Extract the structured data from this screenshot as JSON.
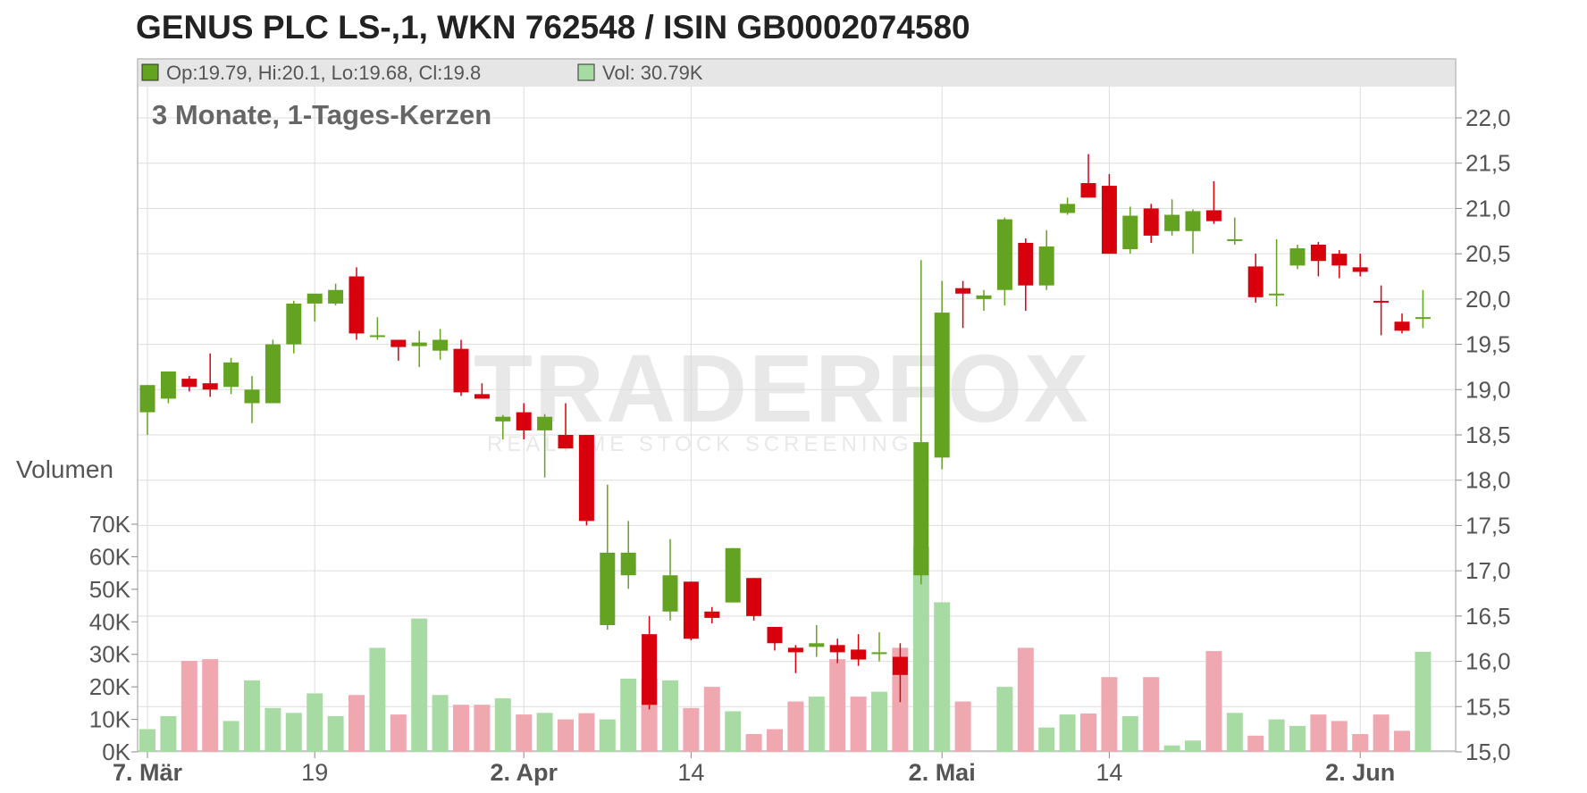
{
  "title": "GENUS PLC LS-,1, WKN 762548 / ISIN GB0002074580",
  "legend": {
    "ohlc_label": "Op:19.79, Hi:20.1, Lo:19.68, Cl:19.8",
    "volume_label": "Vol: 30.79K"
  },
  "watermark": {
    "brand": "TRADERFOX",
    "tagline": "REALTIME STOCK SCREENING"
  },
  "chart_data": {
    "type": "candlestick",
    "subtitle": "3 Monate, 1-Tages-Kerzen",
    "volume_axis_title": "Volumen",
    "colors": {
      "up": "#63a321",
      "down": "#d9000d",
      "vol_up": "#a8dba3",
      "vol_down": "#f0a8b0",
      "grid": "#dddddd",
      "legend_bg": "#e6e6e6"
    },
    "price_axis": {
      "min": 15.0,
      "max": 22.0,
      "step": 0.5,
      "tick_labels": [
        "15,0",
        "15,5",
        "16,0",
        "16,5",
        "17,0",
        "17,5",
        "18,0",
        "18,5",
        "19,0",
        "19,5",
        "20,0",
        "20,5",
        "21,0",
        "21,5",
        "22,0"
      ]
    },
    "volume_axis": {
      "min": 0,
      "max": 70000,
      "step": 10000,
      "tick_labels": [
        "0K",
        "10K",
        "20K",
        "30K",
        "40K",
        "50K",
        "60K",
        "70K"
      ]
    },
    "x_tick_labels": [
      {
        "label": "7. Mär",
        "index": 0,
        "bold": true
      },
      {
        "label": "19",
        "index": 8,
        "bold": false
      },
      {
        "label": "2. Apr",
        "index": 18,
        "bold": true
      },
      {
        "label": "14",
        "index": 26,
        "bold": false
      },
      {
        "label": "2. Mai",
        "index": 38,
        "bold": true
      },
      {
        "label": "14",
        "index": 46,
        "bold": false
      },
      {
        "label": "2. Jun",
        "index": 58,
        "bold": true
      }
    ],
    "candles": [
      {
        "o": 18.75,
        "h": 19.05,
        "l": 18.5,
        "c": 19.05,
        "v": 7000
      },
      {
        "o": 18.9,
        "h": 19.2,
        "l": 18.85,
        "c": 19.2,
        "v": 11000
      },
      {
        "o": 19.12,
        "h": 19.15,
        "l": 18.98,
        "c": 19.03,
        "v": 28000
      },
      {
        "o": 19.07,
        "h": 19.4,
        "l": 18.92,
        "c": 19.0,
        "v": 28500
      },
      {
        "o": 19.03,
        "h": 19.35,
        "l": 18.95,
        "c": 19.3,
        "v": 9500
      },
      {
        "o": 18.85,
        "h": 19.15,
        "l": 18.63,
        "c": 19.0,
        "v": 22000
      },
      {
        "o": 18.85,
        "h": 19.55,
        "l": 18.85,
        "c": 19.5,
        "v": 13500
      },
      {
        "o": 19.5,
        "h": 19.98,
        "l": 19.4,
        "c": 19.95,
        "v": 12000
      },
      {
        "o": 19.95,
        "h": 20.05,
        "l": 19.75,
        "c": 20.06,
        "v": 18000
      },
      {
        "o": 19.95,
        "h": 20.17,
        "l": 19.93,
        "c": 20.1,
        "v": 11000
      },
      {
        "o": 20.25,
        "h": 20.35,
        "l": 19.55,
        "c": 19.62,
        "v": 17500
      },
      {
        "o": 19.6,
        "h": 19.8,
        "l": 19.55,
        "c": 19.6,
        "v": 32000
      },
      {
        "o": 19.55,
        "h": 19.55,
        "l": 19.32,
        "c": 19.47,
        "v": 11500
      },
      {
        "o": 19.48,
        "h": 19.65,
        "l": 19.25,
        "c": 19.52,
        "v": 41000
      },
      {
        "o": 19.43,
        "h": 19.67,
        "l": 19.33,
        "c": 19.55,
        "v": 17500
      },
      {
        "o": 19.45,
        "h": 19.55,
        "l": 18.93,
        "c": 18.97,
        "v": 14500
      },
      {
        "o": 18.95,
        "h": 19.07,
        "l": 18.9,
        "c": 18.9,
        "v": 14500
      },
      {
        "o": 18.65,
        "h": 18.72,
        "l": 18.45,
        "c": 18.7,
        "v": 16500
      },
      {
        "o": 18.75,
        "h": 18.85,
        "l": 18.45,
        "c": 18.55,
        "v": 11500
      },
      {
        "o": 18.55,
        "h": 18.73,
        "l": 18.03,
        "c": 18.7,
        "v": 12000
      },
      {
        "o": 18.5,
        "h": 18.85,
        "l": 18.35,
        "c": 18.35,
        "v": 10000
      },
      {
        "o": 18.5,
        "h": 18.5,
        "l": 17.5,
        "c": 17.55,
        "v": 11900
      },
      {
        "o": 16.4,
        "h": 17.95,
        "l": 16.35,
        "c": 17.2,
        "v": 10000
      },
      {
        "o": 16.95,
        "h": 17.55,
        "l": 16.8,
        "c": 17.2,
        "v": 22500
      },
      {
        "o": 16.3,
        "h": 16.5,
        "l": 15.47,
        "c": 15.52,
        "v": 22500
      },
      {
        "o": 16.55,
        "h": 17.35,
        "l": 16.45,
        "c": 16.95,
        "v": 22000
      },
      {
        "o": 16.88,
        "h": 16.88,
        "l": 16.23,
        "c": 16.25,
        "v": 13500
      },
      {
        "o": 16.55,
        "h": 16.6,
        "l": 16.42,
        "c": 16.48,
        "v": 20000
      },
      {
        "o": 16.65,
        "h": 17.25,
        "l": 16.65,
        "c": 17.25,
        "v": 12500
      },
      {
        "o": 16.92,
        "h": 16.92,
        "l": 16.45,
        "c": 16.5,
        "v": 5500
      },
      {
        "o": 16.38,
        "h": 16.38,
        "l": 16.12,
        "c": 16.2,
        "v": 7000
      },
      {
        "o": 16.15,
        "h": 16.18,
        "l": 15.87,
        "c": 16.1,
        "v": 15500
      },
      {
        "o": 16.16,
        "h": 16.4,
        "l": 16.05,
        "c": 16.2,
        "v": 17000
      },
      {
        "o": 16.18,
        "h": 16.25,
        "l": 15.98,
        "c": 16.1,
        "v": 28500
      },
      {
        "o": 16.13,
        "h": 16.3,
        "l": 15.95,
        "c": 16.02,
        "v": 17000
      },
      {
        "o": 16.1,
        "h": 16.32,
        "l": 16.0,
        "c": 16.1,
        "v": 18500
      },
      {
        "o": 16.05,
        "h": 16.2,
        "l": 15.55,
        "c": 15.85,
        "v": 32000
      },
      {
        "o": 16.95,
        "h": 20.43,
        "l": 16.85,
        "c": 18.42,
        "v": 63000
      },
      {
        "o": 18.25,
        "h": 20.2,
        "l": 18.12,
        "c": 19.85,
        "v": 46000
      },
      {
        "o": 20.12,
        "h": 20.2,
        "l": 19.68,
        "c": 20.06,
        "v": 15500
      },
      {
        "o": 20.0,
        "h": 20.1,
        "l": 19.87,
        "c": 20.04,
        "v": 0
      },
      {
        "o": 20.1,
        "h": 20.9,
        "l": 19.93,
        "c": 20.88,
        "v": 20000
      },
      {
        "o": 20.62,
        "h": 20.67,
        "l": 19.87,
        "c": 20.15,
        "v": 32000
      },
      {
        "o": 20.15,
        "h": 20.76,
        "l": 20.1,
        "c": 20.58,
        "v": 7500
      },
      {
        "o": 20.95,
        "h": 21.12,
        "l": 20.93,
        "c": 21.05,
        "v": 11500
      },
      {
        "o": 21.28,
        "h": 21.6,
        "l": 21.15,
        "c": 21.12,
        "v": 11800
      },
      {
        "o": 21.25,
        "h": 21.38,
        "l": 20.5,
        "c": 20.5,
        "v": 23000
      },
      {
        "o": 20.55,
        "h": 21.02,
        "l": 20.5,
        "c": 20.92,
        "v": 11000
      },
      {
        "o": 21.0,
        "h": 21.05,
        "l": 20.62,
        "c": 20.7,
        "v": 23000
      },
      {
        "o": 20.75,
        "h": 21.1,
        "l": 20.7,
        "c": 20.93,
        "v": 2000
      },
      {
        "o": 20.75,
        "h": 20.99,
        "l": 20.5,
        "c": 20.97,
        "v": 3500
      },
      {
        "o": 20.98,
        "h": 21.3,
        "l": 20.83,
        "c": 20.86,
        "v": 31000
      },
      {
        "o": 20.65,
        "h": 20.9,
        "l": 20.6,
        "c": 20.66,
        "v": 12000
      },
      {
        "o": 20.36,
        "h": 20.5,
        "l": 19.96,
        "c": 20.02,
        "v": 5000
      },
      {
        "o": 20.05,
        "h": 20.66,
        "l": 19.92,
        "c": 20.06,
        "v": 10000
      },
      {
        "o": 20.37,
        "h": 20.6,
        "l": 20.33,
        "c": 20.56,
        "v": 8000
      },
      {
        "o": 20.6,
        "h": 20.63,
        "l": 20.25,
        "c": 20.42,
        "v": 11500
      },
      {
        "o": 20.5,
        "h": 20.54,
        "l": 20.23,
        "c": 20.37,
        "v": 9500
      },
      {
        "o": 20.35,
        "h": 20.5,
        "l": 20.25,
        "c": 20.3,
        "v": 5500
      },
      {
        "o": 19.98,
        "h": 20.15,
        "l": 19.6,
        "c": 19.97,
        "v": 11500
      },
      {
        "o": 19.75,
        "h": 19.84,
        "l": 19.62,
        "c": 19.65,
        "v": 6500
      },
      {
        "o": 19.79,
        "h": 20.1,
        "l": 19.68,
        "c": 19.8,
        "v": 30790
      }
    ]
  }
}
